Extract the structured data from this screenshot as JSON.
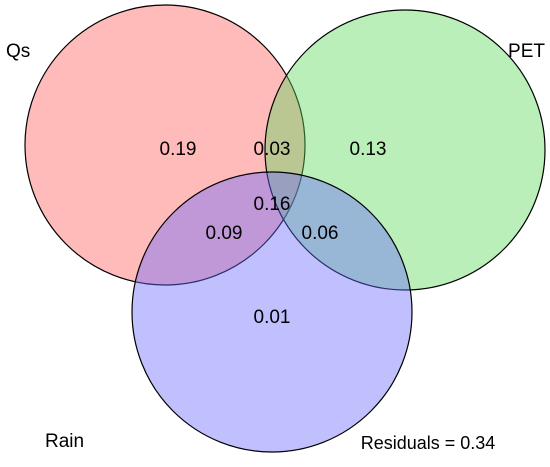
{
  "sets": [
    {
      "label": "Qs"
    },
    {
      "label": "PET"
    },
    {
      "label": "Rain"
    }
  ],
  "regions": {
    "qs_only": 0.19,
    "qs_pet": 0.03,
    "pet_only": 0.13,
    "all": 0.16,
    "qs_rain": 0.09,
    "pet_rain": 0.06,
    "rain_only": 0.01
  },
  "residuals": "Residuals = 0.34"
}
